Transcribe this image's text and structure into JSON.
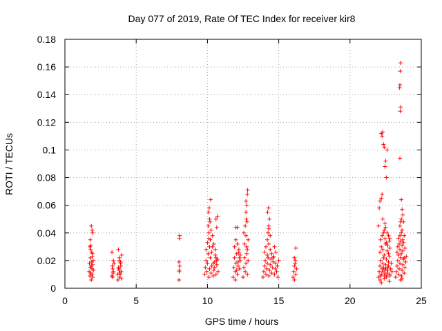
{
  "chart_data": {
    "type": "scatter",
    "title": "Day 077 of 2019, Rate Of TEC Index for receiver kir8",
    "xlabel": "GPS time / hours",
    "ylabel": "ROTI / TECUs",
    "xlim": [
      0,
      25
    ],
    "ylim": [
      0,
      0.18
    ],
    "xticks": [
      0,
      5,
      10,
      15,
      20,
      25
    ],
    "xtick_labels": [
      "0",
      "5",
      "10",
      "15",
      "20",
      "25"
    ],
    "yticks": [
      0,
      0.02,
      0.04,
      0.06,
      0.08,
      0.1,
      0.12,
      0.14,
      0.16,
      0.18
    ],
    "ytick_labels": [
      "0",
      "0.02",
      "0.04",
      "0.06",
      "0.08",
      "0.1",
      "0.12",
      "0.14",
      "0.16",
      "0.18"
    ],
    "grid": true,
    "marker": "+",
    "color": "#ff0000",
    "series": [
      {
        "name": "ROTI",
        "x": [
          1.7,
          1.72,
          1.75,
          1.78,
          1.8,
          1.82,
          1.85,
          1.88,
          1.9,
          1.92,
          1.95,
          1.98,
          2.0,
          1.75,
          1.8,
          1.85,
          1.9,
          1.95,
          1.78,
          1.82,
          1.88,
          1.85,
          1.9,
          1.95,
          1.92,
          3.3,
          3.35,
          3.4,
          3.45,
          3.3,
          3.35,
          3.4,
          3.32,
          3.38,
          3.7,
          3.75,
          3.8,
          3.85,
          3.9,
          3.95,
          3.72,
          3.78,
          3.82,
          3.88,
          3.92,
          3.98,
          3.75,
          3.85,
          3.9,
          3.8,
          3.95,
          8.0,
          8.02,
          8.05,
          8.0,
          8.03,
          8.05,
          8.02,
          9.8,
          9.85,
          9.9,
          9.95,
          10.0,
          10.05,
          10.1,
          10.15,
          10.2,
          10.25,
          10.3,
          10.35,
          10.4,
          10.45,
          10.5,
          10.55,
          10.6,
          10.65,
          10.7,
          10.75,
          9.9,
          10.0,
          10.1,
          10.2,
          10.3,
          10.4,
          10.5,
          10.6,
          10.05,
          10.15,
          10.25,
          10.35,
          10.45,
          10.55,
          10.65,
          10.08,
          10.12,
          10.18,
          10.22,
          10.6,
          10.65,
          10.7,
          10.1,
          10.15,
          11.8,
          11.85,
          11.9,
          11.95,
          12.0,
          12.05,
          12.1,
          12.15,
          12.2,
          12.25,
          12.3,
          11.9,
          12.0,
          12.1,
          12.2,
          11.95,
          12.05,
          12.15,
          12.25,
          12.0,
          12.1,
          12.3,
          12.5,
          12.55,
          12.6,
          12.65,
          12.7,
          12.75,
          12.8,
          12.85,
          12.6,
          12.7,
          12.8,
          12.55,
          12.65,
          12.75,
          12.85,
          12.7,
          12.75,
          12.8,
          12.72,
          12.78,
          12.82,
          12.7,
          13.9,
          13.95,
          14.0,
          14.05,
          14.1,
          14.15,
          14.2,
          14.25,
          14.3,
          14.35,
          14.4,
          14.45,
          14.5,
          14.55,
          14.6,
          14.65,
          14.7,
          14.75,
          14.8,
          14.85,
          14.9,
          14.95,
          15.0,
          14.0,
          14.1,
          14.2,
          14.3,
          14.4,
          14.5,
          14.6,
          14.7,
          14.8,
          14.2,
          14.25,
          14.3,
          14.35,
          14.22,
          14.28,
          14.3,
          14.4,
          16.0,
          16.05,
          16.1,
          16.15,
          16.2,
          16.25,
          16.1,
          16.15,
          16.2,
          16.1,
          22.0,
          22.05,
          22.1,
          22.15,
          22.2,
          22.25,
          22.3,
          22.35,
          22.4,
          22.45,
          22.5,
          22.55,
          22.6,
          22.65,
          22.7,
          22.75,
          22.8,
          22.85,
          22.9,
          22.95,
          22.1,
          22.2,
          22.3,
          22.4,
          22.5,
          22.6,
          22.7,
          22.8,
          22.15,
          22.25,
          22.35,
          22.45,
          22.55,
          22.65,
          22.75,
          22.0,
          22.05,
          22.1,
          22.2,
          22.25,
          22.3,
          22.4,
          22.45,
          22.5,
          22.6,
          22.7,
          22.8,
          22.2,
          22.25,
          22.3,
          22.35,
          22.4,
          22.45,
          22.5,
          22.55,
          22.6,
          22.1,
          22.15,
          22.2,
          22.3,
          22.35,
          22.4,
          22.45,
          22.5,
          22.55,
          22.6,
          22.65,
          22.7,
          22.75,
          22.8,
          23.2,
          23.25,
          23.3,
          23.35,
          23.4,
          23.45,
          23.5,
          23.55,
          23.6,
          23.65,
          23.7,
          23.75,
          23.8,
          23.85,
          23.9,
          23.95,
          23.3,
          23.4,
          23.5,
          23.6,
          23.7,
          23.8,
          23.35,
          23.45,
          23.55,
          23.65,
          23.75,
          23.85,
          23.4,
          23.5,
          23.6,
          23.7,
          23.5,
          23.55,
          23.6,
          23.65,
          23.5,
          23.52,
          23.55,
          23.48,
          23.5,
          23.52,
          23.55,
          23.6,
          23.65,
          23.7,
          23.75,
          23.8,
          23.55,
          23.6,
          23.65
        ],
        "y": [
          0.012,
          0.018,
          0.009,
          0.015,
          0.022,
          0.011,
          0.006,
          0.019,
          0.014,
          0.025,
          0.008,
          0.02,
          0.013,
          0.03,
          0.028,
          0.045,
          0.042,
          0.04,
          0.035,
          0.031,
          0.026,
          0.016,
          0.01,
          0.017,
          0.023,
          0.009,
          0.014,
          0.012,
          0.018,
          0.026,
          0.008,
          0.02,
          0.016,
          0.011,
          0.01,
          0.015,
          0.02,
          0.008,
          0.018,
          0.012,
          0.006,
          0.014,
          0.022,
          0.01,
          0.016,
          0.024,
          0.028,
          0.011,
          0.019,
          0.013,
          0.007,
          0.006,
          0.012,
          0.016,
          0.019,
          0.036,
          0.038,
          0.013,
          0.01,
          0.015,
          0.02,
          0.012,
          0.018,
          0.025,
          0.008,
          0.014,
          0.022,
          0.011,
          0.016,
          0.03,
          0.009,
          0.013,
          0.019,
          0.024,
          0.01,
          0.017,
          0.021,
          0.012,
          0.028,
          0.033,
          0.04,
          0.035,
          0.026,
          0.018,
          0.015,
          0.022,
          0.045,
          0.05,
          0.042,
          0.038,
          0.032,
          0.028,
          0.02,
          0.055,
          0.058,
          0.048,
          0.064,
          0.05,
          0.044,
          0.052,
          0.036,
          0.03,
          0.008,
          0.015,
          0.022,
          0.012,
          0.018,
          0.025,
          0.01,
          0.016,
          0.028,
          0.014,
          0.02,
          0.03,
          0.035,
          0.032,
          0.026,
          0.006,
          0.013,
          0.019,
          0.022,
          0.044,
          0.044,
          0.024,
          0.008,
          0.015,
          0.022,
          0.012,
          0.018,
          0.025,
          0.01,
          0.02,
          0.032,
          0.038,
          0.028,
          0.04,
          0.045,
          0.03,
          0.035,
          0.063,
          0.06,
          0.068,
          0.05,
          0.048,
          0.071,
          0.055,
          0.008,
          0.012,
          0.016,
          0.02,
          0.01,
          0.014,
          0.018,
          0.022,
          0.009,
          0.013,
          0.017,
          0.021,
          0.011,
          0.015,
          0.019,
          0.023,
          0.01,
          0.014,
          0.018,
          0.012,
          0.016,
          0.008,
          0.02,
          0.026,
          0.03,
          0.035,
          0.032,
          0.028,
          0.025,
          0.022,
          0.03,
          0.026,
          0.024,
          0.04,
          0.045,
          0.05,
          0.055,
          0.058,
          0.043,
          0.038,
          0.008,
          0.012,
          0.016,
          0.02,
          0.01,
          0.014,
          0.022,
          0.018,
          0.029,
          0.006,
          0.008,
          0.012,
          0.016,
          0.02,
          0.01,
          0.014,
          0.018,
          0.022,
          0.009,
          0.013,
          0.017,
          0.021,
          0.011,
          0.015,
          0.019,
          0.023,
          0.01,
          0.014,
          0.018,
          0.012,
          0.026,
          0.03,
          0.028,
          0.024,
          0.032,
          0.027,
          0.025,
          0.029,
          0.035,
          0.038,
          0.04,
          0.036,
          0.033,
          0.031,
          0.034,
          0.045,
          0.058,
          0.063,
          0.065,
          0.068,
          0.05,
          0.042,
          0.047,
          0.044,
          0.04,
          0.038,
          0.036,
          0.112,
          0.11,
          0.113,
          0.104,
          0.102,
          0.088,
          0.092,
          0.08,
          0.1,
          0.006,
          0.009,
          0.004,
          0.012,
          0.015,
          0.007,
          0.011,
          0.014,
          0.008,
          0.01,
          0.013,
          0.016,
          0.005,
          0.009,
          0.008,
          0.012,
          0.016,
          0.02,
          0.01,
          0.014,
          0.018,
          0.022,
          0.009,
          0.013,
          0.017,
          0.021,
          0.011,
          0.015,
          0.019,
          0.023,
          0.026,
          0.024,
          0.028,
          0.025,
          0.027,
          0.022,
          0.03,
          0.032,
          0.034,
          0.031,
          0.033,
          0.029,
          0.036,
          0.038,
          0.04,
          0.035,
          0.045,
          0.048,
          0.05,
          0.042,
          0.094,
          0.128,
          0.131,
          0.145,
          0.147,
          0.157,
          0.163,
          0.064,
          0.057,
          0.053,
          0.048,
          0.038,
          0.006,
          0.009,
          0.007
        ]
      }
    ]
  }
}
